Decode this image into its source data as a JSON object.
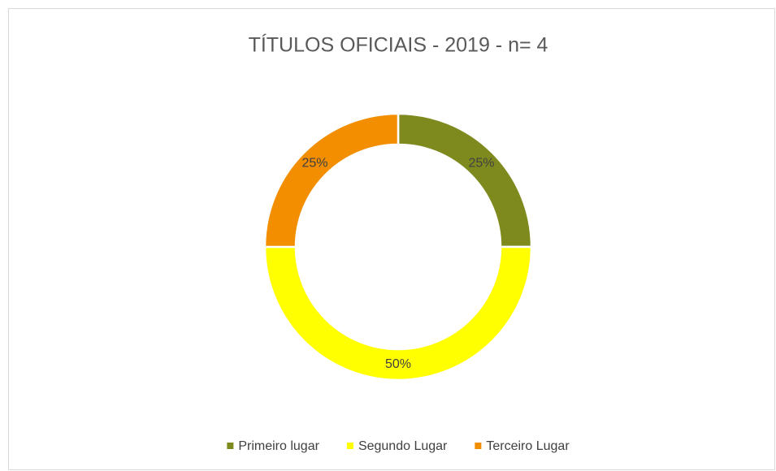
{
  "chart_data": {
    "type": "donut",
    "title": "TÍTULOS OFICIAIS - 2019 - n= 4",
    "categories": [
      "Primeiro lugar",
      "Segundo Lugar",
      "Terceiro Lugar"
    ],
    "values": [
      25,
      50,
      25
    ],
    "value_labels": [
      "25%",
      "50%",
      "25%"
    ],
    "colors": [
      "#7f8a1e",
      "#ffff00",
      "#f28e00"
    ],
    "legend": "bottom"
  }
}
